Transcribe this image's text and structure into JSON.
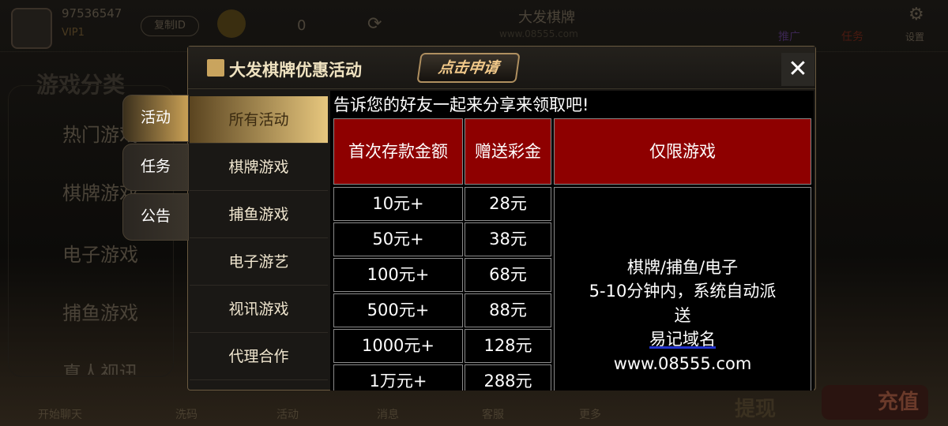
{
  "topbar": {
    "user_id": "97536547",
    "vip": "VIP1",
    "copy_id": "复制ID",
    "balance": "0",
    "brand": "大发棋牌",
    "brand_url": "www.08555.com",
    "promote": "推广",
    "task": "任务",
    "settings": "设置"
  },
  "left_panel": {
    "title": "游戏分类",
    "items": [
      "热门游戏",
      "棋牌游戏",
      "电子游戏",
      "捕鱼游戏",
      "真人视讯"
    ]
  },
  "bottom_bar": [
    "开始聊天",
    "洗码",
    "活动",
    "消息",
    "客服",
    "更多"
  ],
  "bottom_buttons": {
    "withdraw": "提现",
    "recharge": "充值"
  },
  "modal": {
    "title": "大发棋牌优惠活动",
    "apply_button": "点击申请",
    "close": "✕",
    "tabs": [
      {
        "label": "活动",
        "active": true
      },
      {
        "label": "任务"
      },
      {
        "label": "公告"
      }
    ],
    "sub_menu": [
      {
        "label": "所有活动",
        "active": true
      },
      {
        "label": "棋牌游戏"
      },
      {
        "label": "捕鱼游戏"
      },
      {
        "label": "电子游艺"
      },
      {
        "label": "视讯游戏"
      },
      {
        "label": "代理合作"
      }
    ],
    "intro": "告诉您的好友一起来分享来领取吧!",
    "table": {
      "headers": [
        "首次存款金额",
        "赠送彩金",
        "仅限游戏"
      ],
      "rows": [
        [
          "10元+",
          "28元"
        ],
        [
          "50元+",
          "38元"
        ],
        [
          "100元+",
          "68元"
        ],
        [
          "500元+",
          "88元"
        ],
        [
          "1000元+",
          "128元"
        ],
        [
          "1万元+",
          "288元"
        ]
      ],
      "note": {
        "line1": "棋牌/捕鱼/电子",
        "line2": "5-10分钟内，系统自动派",
        "line3": "送",
        "line4": "易记域名",
        "line5": "www.08555.com"
      },
      "header_color": "#8e0000"
    }
  }
}
